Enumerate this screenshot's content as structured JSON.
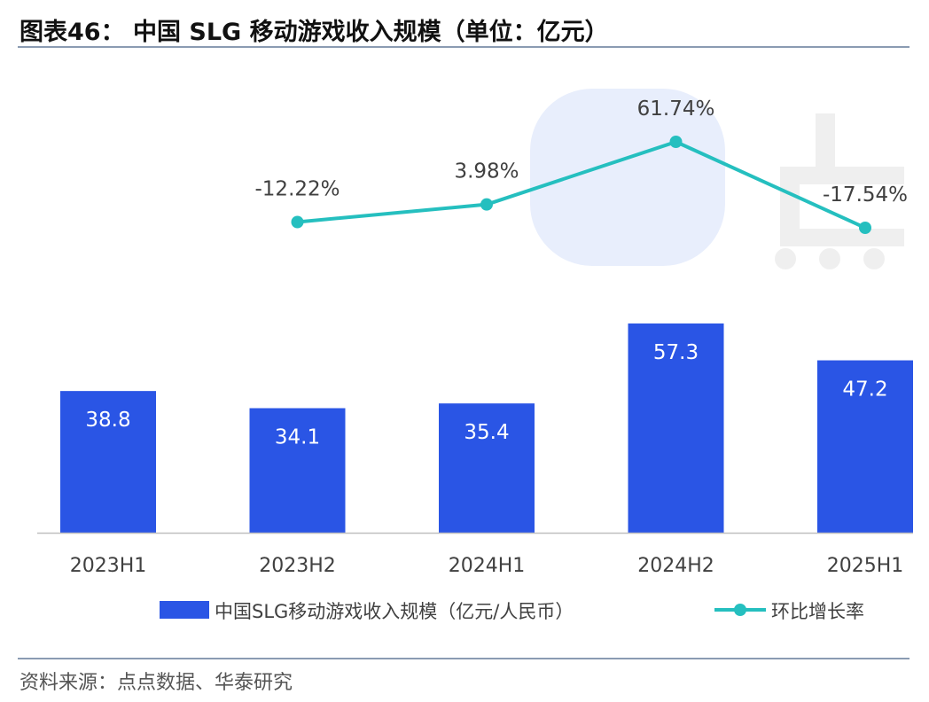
{
  "figure": {
    "title": "图表46： 中国 SLG 移动游戏收入规模（单位：亿元）",
    "source": "资料来源：点点数据、华泰研究"
  },
  "colors": {
    "bar": "#2a55e5",
    "line": "#25bfbf",
    "bar_label": "#ffffff",
    "line_label": "#404040",
    "axis": "#bfbfbf",
    "tick_label": "#404040",
    "watermark_blue": "#e8eefc",
    "watermark_gray": "#efefef"
  },
  "chart_data": {
    "type": "bar",
    "categories": [
      "2023H1",
      "2023H2",
      "2024H1",
      "2024H2",
      "2025H1"
    ],
    "series": [
      {
        "name": "中国SLG移动游戏收入规模（亿元/人民币）",
        "type": "bar",
        "values": [
          38.8,
          34.1,
          35.4,
          57.3,
          47.2
        ],
        "labels": [
          "38.8",
          "34.1",
          "35.4",
          "57.3",
          "47.2"
        ]
      },
      {
        "name": "环比增长率",
        "type": "line",
        "secondary_axis": true,
        "values": [
          null,
          -12.22,
          3.98,
          61.74,
          -17.54
        ],
        "labels": [
          "",
          "-12.22%",
          "3.98%",
          "61.74%",
          "-17.54%"
        ]
      }
    ],
    "legend_position": "bottom",
    "grid": false
  }
}
